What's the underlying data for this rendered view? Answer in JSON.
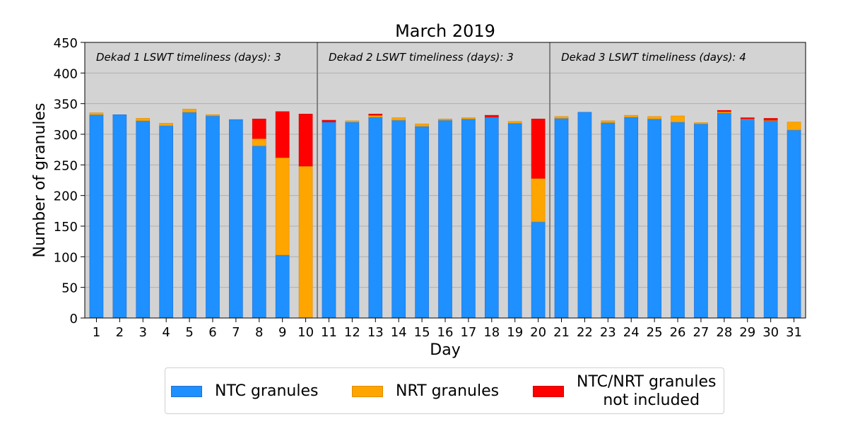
{
  "chart_data": {
    "type": "bar",
    "stacked": true,
    "title": "March 2019",
    "xlabel": "Day",
    "ylabel": "Number of granules",
    "ylim": [
      0,
      450
    ],
    "yticks": [
      0,
      50,
      100,
      150,
      200,
      250,
      300,
      350,
      400,
      450
    ],
    "grid": true,
    "background": "#d3d3d3",
    "categories": [
      "1",
      "2",
      "3",
      "4",
      "5",
      "6",
      "7",
      "8",
      "9",
      "10",
      "11",
      "12",
      "13",
      "14",
      "15",
      "16",
      "17",
      "18",
      "19",
      "20",
      "21",
      "22",
      "23",
      "24",
      "25",
      "26",
      "27",
      "28",
      "29",
      "30",
      "31"
    ],
    "series": [
      {
        "name": "NTC granules",
        "color": "#1e90ff",
        "values": [
          332,
          332,
          322,
          314,
          336,
          330,
          324,
          281,
          103,
          0,
          320,
          320,
          328,
          323,
          313,
          323,
          325,
          328,
          318,
          157,
          326,
          336,
          319,
          328,
          325,
          320,
          317,
          335,
          324,
          322,
          307
        ]
      },
      {
        "name": "NRT granules",
        "color": "#ffa500",
        "values": [
          3,
          0,
          4,
          4,
          5,
          2,
          0,
          12,
          159,
          248,
          0,
          2,
          3,
          4,
          4,
          2,
          2,
          0,
          3,
          71,
          3,
          0,
          3,
          3,
          4,
          10,
          2,
          2,
          1,
          1,
          13
        ]
      },
      {
        "name": "NTC/NRT granules\n  not included",
        "color": "#ff0000",
        "values": [
          0,
          0,
          0,
          0,
          0,
          0,
          0,
          32,
          75,
          85,
          3,
          0,
          2,
          0,
          0,
          0,
          0,
          3,
          0,
          97,
          0,
          0,
          0,
          0,
          0,
          0,
          0,
          2,
          2,
          3,
          0
        ]
      }
    ],
    "dividers_after": [
      "10",
      "20"
    ],
    "annotations": [
      "Dekad 1 LSWT timeliness (days): 3",
      "Dekad 2 LSWT timeliness (days): 3",
      "Dekad 3 LSWT timeliness (days): 4"
    ],
    "legend_position": "bottom"
  }
}
